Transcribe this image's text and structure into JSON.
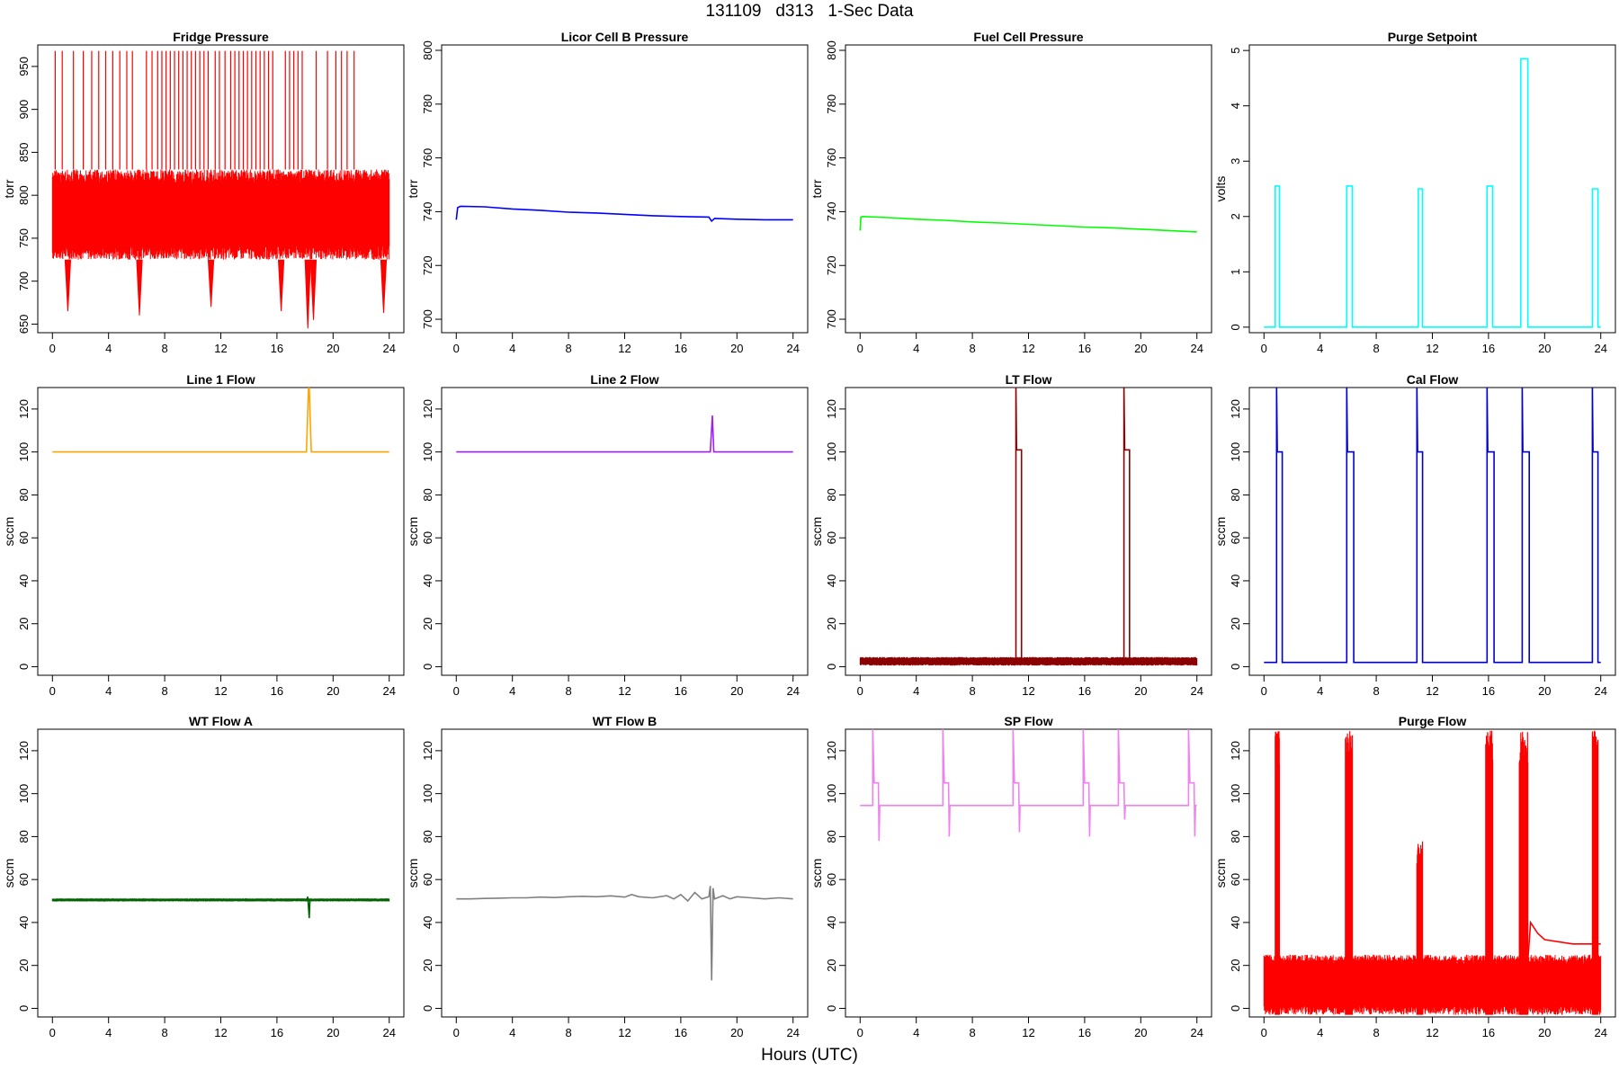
{
  "figure": {
    "title": "131109   d313   1-Sec Data",
    "xlabel": "Hours (UTC)"
  },
  "chart_data": [
    {
      "type": "line",
      "title": "Fridge Pressure",
      "ylabel": "torr",
      "color": "#ff0000",
      "xlim": [
        0,
        24
      ],
      "ylim": [
        640,
        975
      ],
      "yticks": [
        650,
        700,
        750,
        800,
        850,
        900,
        950
      ],
      "xticks": [
        0,
        4,
        8,
        12,
        16,
        20,
        24
      ],
      "band": {
        "x": [
          0,
          24
        ],
        "low": 725,
        "high": 830
      },
      "dips": [
        {
          "x": 1.1,
          "y": 665
        },
        {
          "x": 6.2,
          "y": 660
        },
        {
          "x": 11.3,
          "y": 670
        },
        {
          "x": 16.3,
          "y": 665
        },
        {
          "x": 18.2,
          "y": 645
        },
        {
          "x": 18.6,
          "y": 655
        },
        {
          "x": 23.6,
          "y": 663
        }
      ],
      "spikes": [
        0.2,
        0.7,
        1.5,
        2.2,
        2.8,
        3.3,
        3.8,
        4.3,
        4.8,
        5.3,
        5.7,
        6.7,
        7.1,
        7.5,
        7.8,
        8.1,
        8.4,
        8.7,
        9.0,
        9.3,
        9.6,
        9.9,
        10.2,
        10.5,
        10.8,
        11.1,
        11.6,
        11.9,
        12.3,
        12.7,
        13.0,
        13.3,
        13.6,
        13.9,
        14.2,
        14.5,
        14.8,
        15.1,
        15.4,
        15.7,
        16.6,
        16.9,
        17.2,
        17.5,
        17.8,
        18.8,
        19.6,
        20.2,
        20.6,
        21.0,
        21.5
      ],
      "spike_top": 968
    },
    {
      "type": "line",
      "title": "Licor Cell B Pressure",
      "ylabel": "torr",
      "color": "#0000ff",
      "xlim": [
        0,
        24
      ],
      "ylim": [
        695,
        802
      ],
      "yticks": [
        700,
        720,
        740,
        760,
        780,
        800
      ],
      "xticks": [
        0,
        4,
        8,
        12,
        16,
        20,
        24
      ],
      "x": [
        0,
        0.1,
        0.3,
        2,
        4,
        6,
        8,
        10,
        12,
        14,
        16,
        18,
        18.2,
        18.4,
        20,
        22,
        24
      ],
      "y": [
        737,
        741.5,
        742,
        741.8,
        741,
        740.5,
        739.8,
        739.5,
        739,
        738.5,
        738.2,
        738,
        736.5,
        737.5,
        737.2,
        737,
        737
      ]
    },
    {
      "type": "line",
      "title": "Fuel Cell Pressure",
      "ylabel": "torr",
      "color": "#00ff00",
      "xlim": [
        0,
        24
      ],
      "ylim": [
        695,
        802
      ],
      "yticks": [
        700,
        720,
        740,
        760,
        780,
        800
      ],
      "xticks": [
        0,
        4,
        8,
        12,
        16,
        20,
        24
      ],
      "x": [
        0,
        0.05,
        0.2,
        2,
        4,
        6,
        8,
        10,
        12,
        14,
        16,
        18,
        20,
        22,
        24
      ],
      "y": [
        733,
        738,
        738.2,
        737.8,
        737.2,
        736.8,
        736.2,
        735.8,
        735.3,
        734.8,
        734.3,
        734,
        733.5,
        733,
        732.5
      ]
    },
    {
      "type": "line",
      "title": "Purge Setpoint",
      "ylabel": "volts",
      "color": "#00ffff",
      "xlim": [
        0,
        24
      ],
      "ylim": [
        -0.1,
        5.1
      ],
      "yticks": [
        0,
        1,
        2,
        3,
        4,
        5
      ],
      "xticks": [
        0,
        4,
        8,
        12,
        16,
        20,
        24
      ],
      "x": [
        0,
        0.8,
        0.8,
        1.1,
        1.1,
        5.9,
        5.9,
        6.3,
        6.3,
        11.0,
        11.0,
        11.3,
        11.3,
        15.9,
        15.9,
        16.3,
        16.3,
        18.3,
        18.3,
        18.8,
        18.8,
        23.4,
        23.4,
        23.8,
        23.8,
        24
      ],
      "y": [
        0,
        0,
        2.55,
        2.55,
        0,
        0,
        2.55,
        2.55,
        0,
        0,
        2.5,
        2.5,
        0,
        0,
        2.55,
        2.55,
        0,
        0,
        4.85,
        4.85,
        0,
        0,
        2.5,
        2.5,
        0,
        0
      ]
    },
    {
      "type": "line",
      "title": "Line 1 Flow",
      "ylabel": "sccm",
      "color": "#ffa500",
      "xlim": [
        0,
        24
      ],
      "ylim": [
        -4,
        130
      ],
      "yticks": [
        0,
        20,
        40,
        60,
        80,
        100,
        120
      ],
      "xticks": [
        0,
        4,
        8,
        12,
        16,
        20,
        24
      ],
      "x": [
        0,
        18.1,
        18.25,
        18.3,
        18.45,
        24
      ],
      "y": [
        100,
        100,
        130,
        130,
        100,
        100
      ]
    },
    {
      "type": "line",
      "title": "Line 2 Flow",
      "ylabel": "sccm",
      "color": "#a020f0",
      "xlim": [
        0,
        24
      ],
      "ylim": [
        -4,
        130
      ],
      "yticks": [
        0,
        20,
        40,
        60,
        80,
        100,
        120
      ],
      "xticks": [
        0,
        4,
        8,
        12,
        16,
        20,
        24
      ],
      "x": [
        0,
        18.1,
        18.25,
        18.35,
        24
      ],
      "y": [
        100,
        100,
        117,
        100,
        100
      ]
    },
    {
      "type": "line",
      "title": "LT Flow",
      "ylabel": "sccm",
      "color": "#8b0000",
      "xlim": [
        0,
        24
      ],
      "ylim": [
        -4,
        130
      ],
      "yticks": [
        0,
        20,
        40,
        60,
        80,
        100,
        120
      ],
      "xticks": [
        0,
        4,
        8,
        12,
        16,
        20,
        24
      ],
      "x": [
        0,
        11.1,
        11.1,
        11.15,
        11.2,
        11.5,
        11.5,
        18.8,
        18.8,
        18.85,
        18.9,
        19.2,
        19.2,
        24
      ],
      "y": [
        2,
        2,
        130,
        101,
        101,
        101,
        2,
        2,
        130,
        101,
        101,
        101,
        2,
        2
      ],
      "band": {
        "x": [
          0,
          24
        ],
        "low": 0.5,
        "high": 4.5
      }
    },
    {
      "type": "line",
      "title": "Cal Flow",
      "ylabel": "sccm",
      "color": "#0000cd",
      "xlim": [
        0,
        24
      ],
      "ylim": [
        -4,
        130
      ],
      "yticks": [
        0,
        20,
        40,
        60,
        80,
        100,
        120
      ],
      "xticks": [
        0,
        4,
        8,
        12,
        16,
        20,
        24
      ],
      "x": [
        0,
        0.9,
        0.9,
        0.95,
        1.3,
        1.3,
        5.9,
        5.9,
        5.95,
        6.4,
        6.4,
        10.9,
        10.9,
        10.95,
        11.3,
        11.3,
        15.9,
        15.9,
        15.95,
        16.4,
        16.4,
        18.4,
        18.4,
        18.45,
        18.9,
        18.9,
        23.4,
        23.4,
        23.45,
        23.8,
        23.8,
        24
      ],
      "y": [
        2,
        2,
        130,
        100,
        100,
        2,
        2,
        130,
        100,
        100,
        2,
        2,
        130,
        100,
        100,
        2,
        2,
        130,
        100,
        100,
        2,
        2,
        130,
        100,
        100,
        2,
        2,
        130,
        100,
        100,
        2,
        2
      ]
    },
    {
      "type": "line",
      "title": "WT Flow A",
      "ylabel": "sccm",
      "color": "#006400",
      "xlim": [
        0,
        24
      ],
      "ylim": [
        -4,
        130
      ],
      "yticks": [
        0,
        20,
        40,
        60,
        80,
        100,
        120
      ],
      "xticks": [
        0,
        4,
        8,
        12,
        16,
        20,
        24
      ],
      "x": [
        0,
        18.1,
        18.2,
        18.3,
        18.35,
        18.4,
        24
      ],
      "y": [
        50.5,
        50.5,
        52,
        42,
        50.5,
        50.5,
        50.5
      ],
      "band": {
        "x": [
          0,
          24
        ],
        "low": 49.8,
        "high": 51.2
      }
    },
    {
      "type": "line",
      "title": "WT Flow B",
      "ylabel": "sccm",
      "color": "#808080",
      "xlim": [
        0,
        24
      ],
      "ylim": [
        -4,
        130
      ],
      "yticks": [
        0,
        20,
        40,
        60,
        80,
        100,
        120
      ],
      "xticks": [
        0,
        4,
        8,
        12,
        16,
        20,
        24
      ],
      "x": [
        0,
        1,
        2,
        3,
        4,
        5,
        6,
        7,
        8,
        9,
        10,
        11,
        12,
        12.5,
        13,
        14,
        15,
        15.5,
        16,
        16.5,
        17,
        17.5,
        18,
        18.1,
        18.2,
        18.3,
        18.4,
        19,
        19.5,
        20,
        21,
        22,
        23,
        24
      ],
      "y": [
        51,
        51,
        51.2,
        51.3,
        51.5,
        51.5,
        51.8,
        51.6,
        52,
        52.2,
        52,
        52.4,
        51.8,
        53,
        52,
        51.5,
        52.5,
        51,
        53,
        50,
        54,
        51,
        52,
        57,
        13,
        56,
        51,
        52.5,
        51,
        52,
        51.5,
        51,
        51.5,
        51
      ]
    },
    {
      "type": "line",
      "title": "SP Flow",
      "ylabel": "sccm",
      "color": "#ee82ee",
      "xlim": [
        0,
        24
      ],
      "ylim": [
        -4,
        130
      ],
      "yticks": [
        0,
        20,
        40,
        60,
        80,
        100,
        120
      ],
      "xticks": [
        0,
        4,
        8,
        12,
        16,
        20,
        24
      ],
      "x": [
        0,
        0.9,
        0.9,
        1.0,
        1.3,
        1.35,
        1.4,
        5.9,
        5.9,
        6.0,
        6.3,
        6.35,
        6.4,
        10.9,
        10.9,
        11.0,
        11.3,
        11.35,
        11.4,
        15.9,
        15.9,
        16.0,
        16.3,
        16.35,
        16.4,
        18.4,
        18.4,
        18.5,
        18.8,
        18.85,
        18.9,
        23.4,
        23.4,
        23.5,
        23.8,
        23.85,
        23.9,
        24
      ],
      "y": [
        94.5,
        94.5,
        130,
        105,
        105,
        78,
        94.5,
        94.5,
        130,
        105,
        105,
        80,
        94.5,
        94.5,
        130,
        105,
        105,
        82,
        94.5,
        94.5,
        130,
        105,
        105,
        80,
        94.5,
        94.5,
        130,
        105,
        105,
        88,
        94.5,
        94.5,
        130,
        105,
        105,
        80,
        94.5,
        94.5
      ]
    },
    {
      "type": "line",
      "title": "Purge Flow",
      "ylabel": "sccm",
      "color": "#ff0000",
      "xlim": [
        0,
        24
      ],
      "ylim": [
        -4,
        130
      ],
      "yticks": [
        0,
        20,
        40,
        60,
        80,
        100,
        120
      ],
      "xticks": [
        0,
        4,
        8,
        12,
        16,
        20,
        24
      ],
      "band": {
        "x": [
          0,
          24
        ],
        "low": -3,
        "high": 25
      },
      "bursts": [
        {
          "x0": 0.8,
          "x1": 1.1,
          "top": 130
        },
        {
          "x0": 5.8,
          "x1": 6.3,
          "top": 130
        },
        {
          "x0": 10.9,
          "x1": 11.3,
          "top": 78
        },
        {
          "x0": 15.8,
          "x1": 16.3,
          "top": 130
        },
        {
          "x0": 18.2,
          "x1": 18.8,
          "top": 130
        },
        {
          "x0": 23.4,
          "x1": 23.8,
          "top": 130
        }
      ],
      "x": [
        0,
        18.8,
        19.0,
        19.5,
        20,
        22,
        24
      ],
      "y": [
        22,
        22,
        40,
        35,
        32,
        30,
        30
      ]
    }
  ]
}
